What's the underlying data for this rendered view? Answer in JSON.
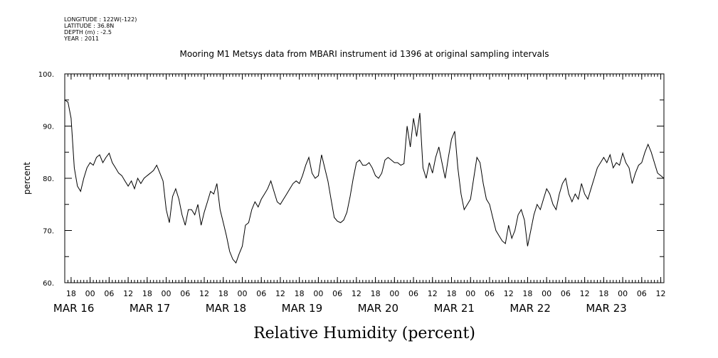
{
  "meta": {
    "longitude": "LONGITUDE : 122W(-122)",
    "latitude": "LATITUDE : 36.8N",
    "depth": "DEPTH (m) : -2.5",
    "year": "YEAR : 2011"
  },
  "chart_data": {
    "type": "line",
    "title": "Mooring M1 Metsys data from MBARI instrument id 1396 at original sampling intervals",
    "xlabel": "Relative Humidity (percent)",
    "ylabel": "percent",
    "ylim": [
      60,
      100
    ],
    "yticks": [
      "60.",
      "70.",
      "80.",
      "90.",
      "100."
    ],
    "hour_ticks": [
      "18",
      "00",
      "06",
      "12",
      "18",
      "00",
      "06",
      "12",
      "18",
      "00",
      "06",
      "12",
      "18",
      "00",
      "06",
      "12",
      "18",
      "00",
      "06",
      "12",
      "18",
      "00",
      "06",
      "12",
      "18",
      "00",
      "06",
      "12",
      "18",
      "00",
      "06",
      "12"
    ],
    "day_labels": [
      "MAR 16",
      "MAR 17",
      "MAR 18",
      "MAR 19",
      "MAR 20",
      "MAR 21",
      "MAR 22",
      "MAR 23"
    ],
    "x_start": "2011-03-15 16:00",
    "x_end": "2011-03-23 13:00",
    "grid": false,
    "series": [
      {
        "points": [
          [
            "2011-03-15 16:00",
            95
          ],
          [
            "2011-03-15 17:00",
            94.6
          ],
          [
            "2011-03-15 18:00",
            91.5
          ],
          [
            "2011-03-15 19:00",
            82
          ],
          [
            "2011-03-15 20:00",
            78.5
          ],
          [
            "2011-03-15 21:00",
            77.5
          ],
          [
            "2011-03-15 22:00",
            80
          ],
          [
            "2011-03-15 23:00",
            82
          ],
          [
            "2011-03-16 00:00",
            83
          ],
          [
            "2011-03-16 01:00",
            82.5
          ],
          [
            "2011-03-16 02:00",
            84
          ],
          [
            "2011-03-16 03:00",
            84.5
          ],
          [
            "2011-03-16 04:00",
            83
          ],
          [
            "2011-03-16 05:00",
            84
          ],
          [
            "2011-03-16 06:00",
            84.8
          ],
          [
            "2011-03-16 07:00",
            83
          ],
          [
            "2011-03-16 08:00",
            82
          ],
          [
            "2011-03-16 09:00",
            81
          ],
          [
            "2011-03-16 10:00",
            80.5
          ],
          [
            "2011-03-16 11:00",
            79.5
          ],
          [
            "2011-03-16 12:00",
            78.5
          ],
          [
            "2011-03-16 13:00",
            79.5
          ],
          [
            "2011-03-16 14:00",
            78
          ],
          [
            "2011-03-16 15:00",
            80
          ],
          [
            "2011-03-16 16:00",
            79
          ],
          [
            "2011-03-16 17:00",
            80
          ],
          [
            "2011-03-16 18:00",
            80.5
          ],
          [
            "2011-03-16 19:00",
            81
          ],
          [
            "2011-03-16 20:00",
            81.5
          ],
          [
            "2011-03-16 21:00",
            82.5
          ],
          [
            "2011-03-16 22:00",
            81
          ],
          [
            "2011-03-16 23:00",
            79.5
          ],
          [
            "2011-03-17 00:00",
            74
          ],
          [
            "2011-03-17 01:00",
            71.5
          ],
          [
            "2011-03-17 02:00",
            76.5
          ],
          [
            "2011-03-17 03:00",
            78
          ],
          [
            "2011-03-17 04:00",
            76
          ],
          [
            "2011-03-17 05:00",
            73
          ],
          [
            "2011-03-17 06:00",
            71
          ],
          [
            "2011-03-17 07:00",
            74
          ],
          [
            "2011-03-17 08:00",
            74
          ],
          [
            "2011-03-17 09:00",
            73
          ],
          [
            "2011-03-17 10:00",
            75
          ],
          [
            "2011-03-17 11:00",
            71
          ],
          [
            "2011-03-17 12:00",
            73.5
          ],
          [
            "2011-03-17 13:00",
            75.5
          ],
          [
            "2011-03-17 14:00",
            77.5
          ],
          [
            "2011-03-17 15:00",
            77
          ],
          [
            "2011-03-17 16:00",
            79
          ],
          [
            "2011-03-17 17:00",
            74
          ],
          [
            "2011-03-17 18:00",
            71.5
          ],
          [
            "2011-03-17 19:00",
            69
          ],
          [
            "2011-03-17 20:00",
            66
          ],
          [
            "2011-03-17 21:00",
            64.5
          ],
          [
            "2011-03-17 22:00",
            63.8
          ],
          [
            "2011-03-17 23:00",
            65.5
          ],
          [
            "2011-03-18 00:00",
            67
          ],
          [
            "2011-03-18 01:00",
            71
          ],
          [
            "2011-03-18 02:00",
            71.5
          ],
          [
            "2011-03-18 03:00",
            74
          ],
          [
            "2011-03-18 04:00",
            75.5
          ],
          [
            "2011-03-18 05:00",
            74.5
          ],
          [
            "2011-03-18 06:00",
            76
          ],
          [
            "2011-03-18 07:00",
            77
          ],
          [
            "2011-03-18 08:00",
            78
          ],
          [
            "2011-03-18 09:00",
            79.5
          ],
          [
            "2011-03-18 10:00",
            77.5
          ],
          [
            "2011-03-18 11:00",
            75.5
          ],
          [
            "2011-03-18 12:00",
            75
          ],
          [
            "2011-03-18 13:00",
            76
          ],
          [
            "2011-03-18 14:00",
            77
          ],
          [
            "2011-03-18 15:00",
            78
          ],
          [
            "2011-03-18 16:00",
            79
          ],
          [
            "2011-03-18 17:00",
            79.5
          ],
          [
            "2011-03-18 18:00",
            79
          ],
          [
            "2011-03-18 19:00",
            80.5
          ],
          [
            "2011-03-18 20:00",
            82.5
          ],
          [
            "2011-03-18 21:00",
            84
          ],
          [
            "2011-03-18 22:00",
            81
          ],
          [
            "2011-03-18 23:00",
            80
          ],
          [
            "2011-03-19 00:00",
            80.5
          ],
          [
            "2011-03-19 01:00",
            84.5
          ],
          [
            "2011-03-19 02:00",
            82
          ],
          [
            "2011-03-19 03:00",
            79.5
          ],
          [
            "2011-03-19 04:00",
            76
          ],
          [
            "2011-03-19 05:00",
            72.5
          ],
          [
            "2011-03-19 06:00",
            71.8
          ],
          [
            "2011-03-19 07:00",
            71.5
          ],
          [
            "2011-03-19 08:00",
            72
          ],
          [
            "2011-03-19 09:00",
            73.5
          ],
          [
            "2011-03-19 10:00",
            76.5
          ],
          [
            "2011-03-19 11:00",
            80
          ],
          [
            "2011-03-19 12:00",
            83
          ],
          [
            "2011-03-19 13:00",
            83.5
          ],
          [
            "2011-03-19 14:00",
            82.5
          ],
          [
            "2011-03-19 15:00",
            82.5
          ],
          [
            "2011-03-19 16:00",
            83
          ],
          [
            "2011-03-19 17:00",
            82
          ],
          [
            "2011-03-19 18:00",
            80.5
          ],
          [
            "2011-03-19 19:00",
            80
          ],
          [
            "2011-03-19 20:00",
            81
          ],
          [
            "2011-03-19 21:00",
            83.5
          ],
          [
            "2011-03-19 22:00",
            84
          ],
          [
            "2011-03-19 23:00",
            83.5
          ],
          [
            "2011-03-20 00:00",
            83
          ],
          [
            "2011-03-20 01:00",
            83
          ],
          [
            "2011-03-20 02:00",
            82.5
          ],
          [
            "2011-03-20 03:00",
            82.8
          ],
          [
            "2011-03-20 04:00",
            90
          ],
          [
            "2011-03-20 05:00",
            86
          ],
          [
            "2011-03-20 06:00",
            91.5
          ],
          [
            "2011-03-20 07:00",
            88
          ],
          [
            "2011-03-20 08:00",
            92.5
          ],
          [
            "2011-03-20 09:00",
            82
          ],
          [
            "2011-03-20 10:00",
            80
          ],
          [
            "2011-03-20 11:00",
            83
          ],
          [
            "2011-03-20 12:00",
            81
          ],
          [
            "2011-03-20 13:00",
            84
          ],
          [
            "2011-03-20 14:00",
            86
          ],
          [
            "2011-03-20 15:00",
            83
          ],
          [
            "2011-03-20 16:00",
            80
          ],
          [
            "2011-03-20 17:00",
            84
          ],
          [
            "2011-03-20 18:00",
            87.5
          ],
          [
            "2011-03-20 19:00",
            89
          ],
          [
            "2011-03-20 20:00",
            82
          ],
          [
            "2011-03-20 21:00",
            77
          ],
          [
            "2011-03-20 22:00",
            74
          ],
          [
            "2011-03-20 23:00",
            75
          ],
          [
            "2011-03-21 00:00",
            76
          ],
          [
            "2011-03-21 01:00",
            80
          ],
          [
            "2011-03-21 02:00",
            84
          ],
          [
            "2011-03-21 03:00",
            83
          ],
          [
            "2011-03-21 04:00",
            79
          ],
          [
            "2011-03-21 05:00",
            76
          ],
          [
            "2011-03-21 06:00",
            75
          ],
          [
            "2011-03-21 07:00",
            72.5
          ],
          [
            "2011-03-21 08:00",
            70
          ],
          [
            "2011-03-21 09:00",
            69
          ],
          [
            "2011-03-21 10:00",
            68
          ],
          [
            "2011-03-21 11:00",
            67.5
          ],
          [
            "2011-03-21 12:00",
            71
          ],
          [
            "2011-03-21 13:00",
            68.5
          ],
          [
            "2011-03-21 14:00",
            70
          ],
          [
            "2011-03-21 15:00",
            73
          ],
          [
            "2011-03-21 16:00",
            74
          ],
          [
            "2011-03-21 17:00",
            72
          ],
          [
            "2011-03-21 18:00",
            67
          ],
          [
            "2011-03-21 19:00",
            70
          ],
          [
            "2011-03-21 20:00",
            73
          ],
          [
            "2011-03-21 21:00",
            75
          ],
          [
            "2011-03-21 22:00",
            74
          ],
          [
            "2011-03-21 23:00",
            76
          ],
          [
            "2011-03-22 00:00",
            78
          ],
          [
            "2011-03-22 01:00",
            77
          ],
          [
            "2011-03-22 02:00",
            75
          ],
          [
            "2011-03-22 03:00",
            74
          ],
          [
            "2011-03-22 04:00",
            77
          ],
          [
            "2011-03-22 05:00",
            79
          ],
          [
            "2011-03-22 06:00",
            80
          ],
          [
            "2011-03-22 07:00",
            77
          ],
          [
            "2011-03-22 08:00",
            75.5
          ],
          [
            "2011-03-22 09:00",
            77
          ],
          [
            "2011-03-22 10:00",
            76
          ],
          [
            "2011-03-22 11:00",
            79
          ],
          [
            "2011-03-22 12:00",
            77
          ],
          [
            "2011-03-22 13:00",
            76
          ],
          [
            "2011-03-22 14:00",
            78
          ],
          [
            "2011-03-22 15:00",
            80
          ],
          [
            "2011-03-22 16:00",
            82
          ],
          [
            "2011-03-22 17:00",
            83
          ],
          [
            "2011-03-22 18:00",
            84
          ],
          [
            "2011-03-22 19:00",
            83
          ],
          [
            "2011-03-22 20:00",
            84.5
          ],
          [
            "2011-03-22 21:00",
            82
          ],
          [
            "2011-03-22 22:00",
            83
          ],
          [
            "2011-03-22 23:00",
            82.5
          ],
          [
            "2011-03-23 00:00",
            84.8
          ],
          [
            "2011-03-23 01:00",
            83
          ],
          [
            "2011-03-23 02:00",
            82
          ],
          [
            "2011-03-23 03:00",
            79
          ],
          [
            "2011-03-23 04:00",
            81
          ],
          [
            "2011-03-23 05:00",
            82.5
          ],
          [
            "2011-03-23 06:00",
            83
          ],
          [
            "2011-03-23 07:00",
            85
          ],
          [
            "2011-03-23 08:00",
            86.5
          ],
          [
            "2011-03-23 09:00",
            85
          ],
          [
            "2011-03-23 10:00",
            83
          ],
          [
            "2011-03-23 11:00",
            81
          ],
          [
            "2011-03-23 12:00",
            80.5
          ],
          [
            "2011-03-23 13:00",
            80
          ]
        ]
      }
    ]
  }
}
